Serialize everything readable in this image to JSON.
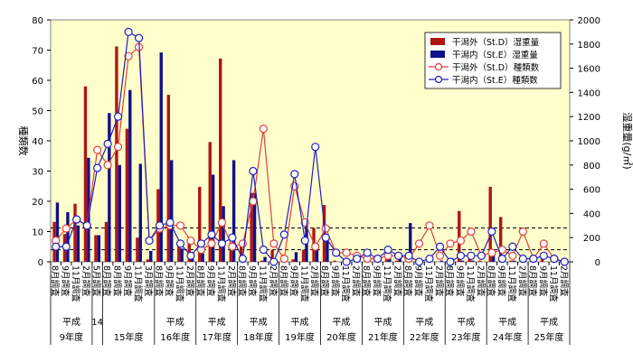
{
  "chart_data": {
    "type": "bar",
    "y_left_label": "種類数",
    "y_right_label": "湿重量(g/㎡)",
    "y_left_lim": [
      0,
      80
    ],
    "y_left_ticks": [
      "0",
      "10",
      "20",
      "30",
      "40",
      "50",
      "60",
      "70",
      "80"
    ],
    "y_right_lim": [
      0,
      2000
    ],
    "y_right_ticks": [
      "0",
      "200",
      "400",
      "600",
      "800",
      "1000",
      "1200",
      "1400",
      "1600",
      "1800",
      "2000"
    ],
    "reference_lines_right": [
      100,
      280
    ],
    "x_months": [
      "8月調査",
      "9月調査",
      "11月調査",
      "2月調査",
      "5月調査",
      "8月調査",
      "8月調査",
      "9月調査",
      "11月調査",
      "3月調査",
      "8月調査",
      "9月調査",
      "11月調査",
      "2月調査",
      "8月調査",
      "9月調査",
      "11月調査",
      "2月調査",
      "8月調査",
      "9月調査",
      "11月調査",
      "2月調査",
      "8月調査",
      "9月調査",
      "11月調査",
      "2月調査",
      "8月調査",
      "9月調査",
      "11月調査",
      "2月調査",
      "8月調査",
      "9月調査",
      "11月調査",
      "2月調査",
      "8月調査",
      "9月調査",
      "11月調査",
      "2月調査",
      "8月調査",
      "9月調査",
      "11月調査",
      "2月調査",
      "8月調査",
      "9月調査",
      "11月調査",
      "2月調査",
      "8月調査",
      "9月調査",
      "11月調査",
      "2月調査"
    ],
    "year_groups": [
      {
        "label1": "平成",
        "label2": "9年度",
        "start": 0,
        "end": 3
      },
      {
        "label1": "14",
        "label2": "",
        "start": 4,
        "end": 4
      },
      {
        "label1": "",
        "label2": "15年度",
        "start": 5,
        "end": 9
      },
      {
        "label1": "平成",
        "label2": "16年度",
        "start": 10,
        "end": 13
      },
      {
        "label1": "平成",
        "label2": "17年度",
        "start": 14,
        "end": 17
      },
      {
        "label1": "平成",
        "label2": "18年度",
        "start": 18,
        "end": 21
      },
      {
        "label1": "平成",
        "label2": "19年度",
        "start": 22,
        "end": 25
      },
      {
        "label1": "平成",
        "label2": "20年度",
        "start": 26,
        "end": 29
      },
      {
        "label1": "平成",
        "label2": "21年度",
        "start": 30,
        "end": 33
      },
      {
        "label1": "平成",
        "label2": "22年度",
        "start": 34,
        "end": 37
      },
      {
        "label1": "平成",
        "label2": "23年度",
        "start": 38,
        "end": 41
      },
      {
        "label1": "平成",
        "label2": "24年度",
        "start": 42,
        "end": 45
      },
      {
        "label1": "平成",
        "label2": "25年度",
        "start": 46,
        "end": 49
      }
    ],
    "series": [
      {
        "name": "干潟外（St.D）湿重量",
        "kind": "bar",
        "axis": "right",
        "color": "#b01515",
        "values": [
          330,
          230,
          480,
          1450,
          220,
          330,
          1780,
          1100,
          200,
          20,
          600,
          1380,
          170,
          180,
          620,
          990,
          1680,
          160,
          130,
          570,
          10,
          100,
          60,
          20,
          100,
          280,
          470,
          10,
          10,
          0,
          10,
          0,
          20,
          10,
          10,
          0,
          0,
          0,
          10,
          420,
          60,
          10,
          620,
          370,
          10,
          20,
          0,
          30,
          0,
          10
        ]
      },
      {
        "name": "干潟内（St.E）湿重量",
        "kind": "bar",
        "axis": "right",
        "color": "#10108a",
        "values": [
          490,
          410,
          300,
          860,
          220,
          1230,
          800,
          1420,
          810,
          90,
          1730,
          840,
          110,
          80,
          70,
          720,
          460,
          840,
          20,
          570,
          40,
          20,
          10,
          80,
          310,
          150,
          190,
          0,
          0,
          0,
          10,
          0,
          40,
          70,
          320,
          0,
          10,
          10,
          30,
          10,
          10,
          0,
          60,
          10,
          10,
          0,
          0,
          0,
          10,
          0
        ]
      },
      {
        "name": "干潟外（St.D）種類数",
        "kind": "line",
        "axis": "left",
        "color": "#e04040",
        "values": [
          7,
          11,
          14,
          12,
          37,
          32,
          38,
          68,
          71,
          7,
          11,
          12,
          12,
          7,
          4,
          6,
          13,
          5,
          6,
          20,
          44,
          6,
          1,
          25,
          13,
          5,
          11,
          3,
          3,
          2,
          1,
          1,
          2,
          2,
          1,
          6,
          12,
          2,
          6,
          7,
          10,
          2,
          3,
          4,
          2,
          10,
          1,
          6,
          1,
          0
        ]
      },
      {
        "name": "干潟内（St.E）種類数",
        "kind": "line",
        "axis": "left",
        "color": "#2020c0",
        "values": [
          5,
          5,
          14,
          12,
          31,
          39,
          48,
          76,
          74,
          7,
          12,
          13,
          6,
          2,
          6,
          9,
          6,
          8,
          1,
          30,
          4,
          0,
          9,
          29,
          7,
          38,
          8,
          3,
          0,
          1,
          3,
          1,
          4,
          2,
          2,
          0,
          1,
          5,
          0,
          2,
          2,
          2,
          10,
          1,
          5,
          1,
          1,
          2,
          1,
          0
        ]
      }
    ]
  }
}
